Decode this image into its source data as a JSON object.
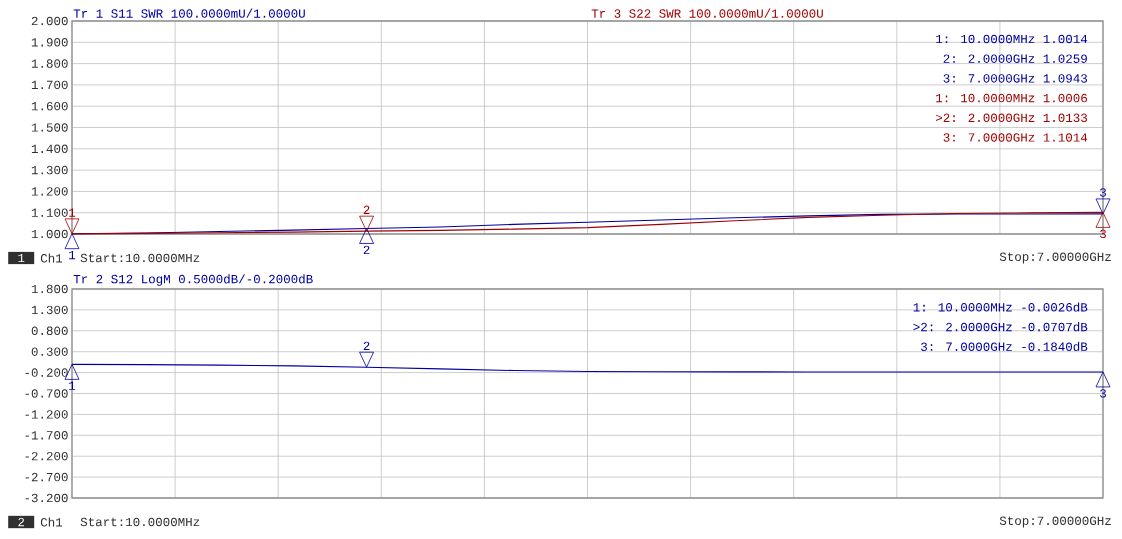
{
  "chart_data": [
    {
      "type": "line",
      "categories": [
        null,
        null,
        null,
        null,
        null,
        null,
        null,
        null,
        null,
        null,
        null,
        null,
        null,
        null,
        null
      ],
      "series": [
        {
          "name": "Tr 1  S11 SWR 100.0000mU/1.0000U",
          "color": "#0000a0",
          "values": [
            1.0014,
            1.005,
            1.012,
            1.018,
            1.0259,
            1.033,
            1.045,
            1.055,
            1.066,
            1.076,
            1.085,
            1.092,
            1.094,
            1.094,
            1.0943
          ]
        },
        {
          "name": "Tr 3  S22 SWR 100.0000mU/1.0000U",
          "color": "#a00000",
          "values": [
            1.0006,
            1.003,
            1.006,
            1.009,
            1.0133,
            1.017,
            1.023,
            1.03,
            1.045,
            1.062,
            1.078,
            1.088,
            1.096,
            1.099,
            1.1014
          ]
        }
      ],
      "ylim": [
        1,
        2
      ],
      "yticks": [
        {
          "value": 1,
          "label": "1.000"
        },
        {
          "value": 1.1,
          "label": "1.100"
        },
        {
          "value": 1.2,
          "label": "1.200"
        },
        {
          "value": 1.3,
          "label": "1.300"
        },
        {
          "value": 1.4,
          "label": "1.400"
        },
        {
          "value": 1.5,
          "label": "1.500"
        },
        {
          "value": 1.6,
          "label": "1.600"
        },
        {
          "value": 1.7,
          "label": "1.700"
        },
        {
          "value": 1.8,
          "label": "1.800"
        },
        {
          "value": 1.9,
          "label": "1.900"
        },
        {
          "value": 2,
          "label": "2.000"
        }
      ],
      "tick_labels": "y",
      "grid": true,
      "line_style": "solid",
      "annotations": [
        "1: 10.0000MHz 1.0014",
        "2: 2.0000GHz 1.0259",
        "3: 7.0000GHz 1.0943",
        "1: 10.0000MHz 1.0006",
        ">2: 2.0000GHz 1.0133",
        "3: 7.0000GHz 1.1014",
        {
          "text": "1",
          "y": 1.0014
        },
        {
          "text": "2",
          "y": 1.0259
        },
        {
          "text": "3",
          "y": 1.0943
        },
        {
          "text": "1",
          "y": 1.0006
        },
        {
          "text": "2",
          "y": 1.0133
        },
        {
          "text": "3",
          "y": 1.1014
        },
        "1",
        "Ch1",
        "Start:10.0000MHz",
        "Stop:7.00000GHz"
      ]
    },
    {
      "type": "line",
      "categories": [
        null,
        null,
        null,
        null,
        null,
        null,
        null,
        null,
        null,
        null,
        null,
        null,
        null,
        null,
        null
      ],
      "series": [
        {
          "name": "Tr 2  S12 LogM 0.5000dB/-0.2000dB",
          "color": "#0000a0",
          "values": [
            -0.0026,
            -0.01,
            -0.02,
            -0.04,
            -0.0707,
            -0.11,
            -0.15,
            -0.175,
            -0.18,
            -0.183,
            -0.1838,
            -0.1841,
            -0.1842,
            -0.1841,
            -0.184
          ]
        }
      ],
      "ylim": [
        -3.2,
        1.8
      ],
      "yticks": [
        {
          "value": -3.2,
          "label": "-3.200"
        },
        {
          "value": -2.7,
          "label": "-2.700"
        },
        {
          "value": -2.2,
          "label": "-2.200"
        },
        {
          "value": -1.7,
          "label": "-1.700"
        },
        {
          "value": -1.2,
          "label": "-1.200"
        },
        {
          "value": -0.7,
          "label": "-0.700"
        },
        {
          "value": -0.2,
          "label": "-0.200"
        },
        {
          "value": 0.3,
          "label": "0.300"
        },
        {
          "value": 0.8,
          "label": "0.800"
        },
        {
          "value": 1.3,
          "label": "1.300"
        },
        {
          "value": 1.8,
          "label": "1.800"
        }
      ],
      "tick_labels": "y",
      "grid": true,
      "line_style": "solid",
      "annotations": [
        "1: 10.0000MHz -0.0026dB",
        ">2: 2.0000GHz -0.0707dB",
        "3: 7.0000GHz -0.1840dB",
        {
          "text": "1",
          "y": -0.0026
        },
        {
          "text": "2",
          "y": -0.0707
        },
        {
          "text": "3",
          "y": -0.184
        },
        "2",
        "Ch1",
        "Start:10.0000MHz",
        "Stop:7.00000GHz"
      ]
    }
  ]
}
